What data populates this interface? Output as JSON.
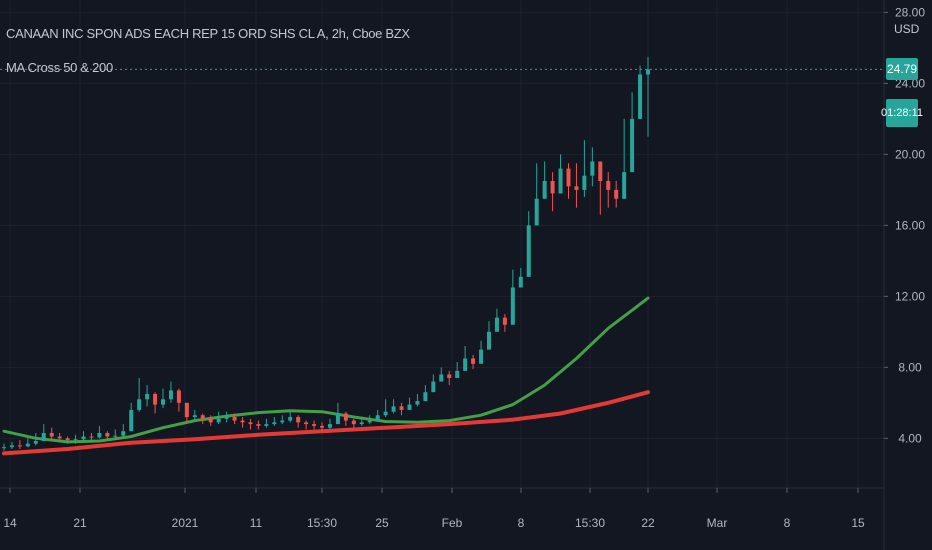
{
  "header": {
    "title": "CANAAN INC SPON ADS EACH REP 15 ORD SHS CL A, 2h, Cboe BZX",
    "indicator": "MA Cross 50 & 200",
    "currency": "USD",
    "last_price": "24.79",
    "countdown": "01:28:11"
  },
  "colors": {
    "background": "#131722",
    "grid": "#1e222d",
    "up": "#26a69a",
    "down": "#ef5350",
    "ma50": "#43a047",
    "ma200": "#e53935",
    "last_price_line": "#26a69a"
  },
  "chart_data": {
    "type": "candlestick",
    "y_axis": {
      "ticks": [
        "4.00",
        "8.00",
        "12.00",
        "16.00",
        "20.00",
        "24.00",
        "28.00"
      ],
      "ylim": [
        1.2,
        28.7
      ]
    },
    "x_axis": {
      "ticks": [
        "14",
        "21",
        "2021",
        "11",
        "15:30",
        "25",
        "Feb",
        "8",
        "15:30",
        "22",
        "Mar",
        "8",
        "15"
      ]
    },
    "last_price": 24.79,
    "series": [
      {
        "name": "candles",
        "values": [
          {
            "c": 3.5,
            "h": 3.7,
            "l": 3.3
          },
          {
            "c": 3.6,
            "h": 3.8,
            "l": 3.4
          },
          {
            "c": 3.55,
            "h": 3.9,
            "l": 3.4
          },
          {
            "c": 3.7,
            "h": 4.0,
            "l": 3.5
          },
          {
            "c": 3.85,
            "h": 4.3,
            "l": 3.6
          },
          {
            "c": 4.3,
            "h": 4.8,
            "l": 4.0
          },
          {
            "c": 4.1,
            "h": 4.6,
            "l": 3.9
          },
          {
            "c": 4.0,
            "h": 4.3,
            "l": 3.8
          },
          {
            "c": 3.9,
            "h": 4.1,
            "l": 3.7
          },
          {
            "c": 3.95,
            "h": 4.2,
            "l": 3.7
          },
          {
            "c": 4.1,
            "h": 4.4,
            "l": 3.8
          },
          {
            "c": 4.05,
            "h": 4.3,
            "l": 3.8
          },
          {
            "c": 4.3,
            "h": 4.7,
            "l": 4.0
          },
          {
            "c": 4.1,
            "h": 4.4,
            "l": 3.85
          },
          {
            "c": 4.15,
            "h": 4.5,
            "l": 3.9
          },
          {
            "c": 4.4,
            "h": 4.8,
            "l": 4.1
          },
          {
            "c": 5.6,
            "h": 6.0,
            "l": 4.4
          },
          {
            "c": 6.2,
            "h": 7.4,
            "l": 5.5
          },
          {
            "c": 6.5,
            "h": 7.0,
            "l": 5.8
          },
          {
            "c": 5.9,
            "h": 6.6,
            "l": 5.4
          },
          {
            "c": 6.2,
            "h": 6.8,
            "l": 5.7
          },
          {
            "c": 6.7,
            "h": 7.2,
            "l": 6.0
          },
          {
            "c": 6.0,
            "h": 6.8,
            "l": 5.5
          },
          {
            "c": 5.2,
            "h": 5.8,
            "l": 4.9
          },
          {
            "c": 5.3,
            "h": 5.6,
            "l": 5.0
          },
          {
            "c": 5.1,
            "h": 5.4,
            "l": 4.8
          },
          {
            "c": 4.9,
            "h": 5.3,
            "l": 4.7
          },
          {
            "c": 5.1,
            "h": 5.5,
            "l": 4.8
          },
          {
            "c": 5.2,
            "h": 5.5,
            "l": 4.9
          },
          {
            "c": 5.0,
            "h": 5.4,
            "l": 4.8
          },
          {
            "c": 4.9,
            "h": 5.2,
            "l": 4.6
          },
          {
            "c": 4.8,
            "h": 5.1,
            "l": 4.5
          },
          {
            "c": 4.7,
            "h": 5.0,
            "l": 4.5
          },
          {
            "c": 4.8,
            "h": 5.1,
            "l": 4.6
          },
          {
            "c": 4.9,
            "h": 5.2,
            "l": 4.7
          },
          {
            "c": 5.0,
            "h": 5.3,
            "l": 4.8
          },
          {
            "c": 5.2,
            "h": 5.5,
            "l": 4.9
          },
          {
            "c": 4.9,
            "h": 5.3,
            "l": 4.6
          },
          {
            "c": 4.8,
            "h": 5.0,
            "l": 4.5
          },
          {
            "c": 4.7,
            "h": 5.0,
            "l": 4.5
          },
          {
            "c": 4.6,
            "h": 4.9,
            "l": 4.4
          },
          {
            "c": 4.8,
            "h": 5.1,
            "l": 4.5
          },
          {
            "c": 5.4,
            "h": 6.0,
            "l": 4.8
          },
          {
            "c": 5.0,
            "h": 5.5,
            "l": 4.7
          },
          {
            "c": 4.8,
            "h": 5.1,
            "l": 4.6
          },
          {
            "c": 4.9,
            "h": 5.2,
            "l": 4.7
          },
          {
            "c": 5.0,
            "h": 5.3,
            "l": 4.8
          },
          {
            "c": 5.3,
            "h": 5.6,
            "l": 5.0
          },
          {
            "c": 5.5,
            "h": 6.2,
            "l": 5.2
          },
          {
            "c": 5.8,
            "h": 6.2,
            "l": 5.4
          },
          {
            "c": 5.6,
            "h": 6.0,
            "l": 5.3
          },
          {
            "c": 5.9,
            "h": 6.3,
            "l": 5.6
          },
          {
            "c": 6.1,
            "h": 6.5,
            "l": 5.8
          },
          {
            "c": 6.6,
            "h": 7.0,
            "l": 6.2
          },
          {
            "c": 7.2,
            "h": 7.6,
            "l": 6.8
          },
          {
            "c": 7.6,
            "h": 8.0,
            "l": 7.2
          },
          {
            "c": 7.4,
            "h": 7.8,
            "l": 7.0
          },
          {
            "c": 7.8,
            "h": 8.3,
            "l": 7.4
          },
          {
            "c": 8.5,
            "h": 9.2,
            "l": 8.0
          },
          {
            "c": 8.2,
            "h": 8.7,
            "l": 7.9
          },
          {
            "c": 9.0,
            "h": 9.5,
            "l": 8.5
          },
          {
            "c": 10.0,
            "h": 10.6,
            "l": 9.5
          },
          {
            "c": 10.8,
            "h": 11.3,
            "l": 10.0
          },
          {
            "c": 10.4,
            "h": 11.0,
            "l": 10.0
          },
          {
            "c": 12.5,
            "h": 13.5,
            "l": 11.0
          },
          {
            "c": 13.1,
            "h": 13.6,
            "l": 12.5
          },
          {
            "c": 16.0,
            "h": 16.8,
            "l": 15.0
          },
          {
            "c": 17.5,
            "h": 19.5,
            "l": 16.5
          },
          {
            "c": 18.5,
            "h": 19.6,
            "l": 17.5
          },
          {
            "c": 17.8,
            "h": 19.0,
            "l": 16.8
          },
          {
            "c": 19.2,
            "h": 20.0,
            "l": 18.0
          },
          {
            "c": 18.2,
            "h": 19.5,
            "l": 17.5
          },
          {
            "c": 18.0,
            "h": 19.5,
            "l": 17.0
          },
          {
            "c": 18.8,
            "h": 20.8,
            "l": 17.6
          },
          {
            "c": 19.6,
            "h": 20.4,
            "l": 18.2
          },
          {
            "c": 18.5,
            "h": 19.6,
            "l": 16.6
          },
          {
            "c": 18.0,
            "h": 19.0,
            "l": 17.0
          },
          {
            "c": 17.5,
            "h": 18.5,
            "l": 17.0
          },
          {
            "c": 19.0,
            "h": 22.0,
            "l": 18.5
          },
          {
            "c": 22.0,
            "h": 23.5,
            "l": 19.8
          },
          {
            "c": 24.5,
            "h": 25.0,
            "l": 22.0
          },
          {
            "c": 24.79,
            "h": 25.5,
            "l": 21.0
          }
        ]
      },
      {
        "name": "MA 50",
        "x": [
          0,
          4,
          8,
          12,
          16,
          20,
          24,
          28,
          32,
          36,
          40,
          44,
          48,
          52,
          56,
          60,
          64,
          68,
          72,
          76,
          81
        ],
        "values": [
          4.4,
          4.0,
          3.8,
          3.85,
          4.1,
          4.6,
          5.0,
          5.25,
          5.45,
          5.55,
          5.5,
          5.2,
          4.95,
          4.9,
          5.0,
          5.3,
          5.9,
          7.0,
          8.5,
          10.2,
          11.9
        ]
      },
      {
        "name": "MA 200",
        "x": [
          0,
          8,
          16,
          24,
          32,
          40,
          48,
          56,
          64,
          70,
          76,
          81
        ],
        "values": [
          3.15,
          3.4,
          3.75,
          3.95,
          4.2,
          4.4,
          4.6,
          4.8,
          5.05,
          5.4,
          6.0,
          6.6
        ]
      }
    ]
  }
}
